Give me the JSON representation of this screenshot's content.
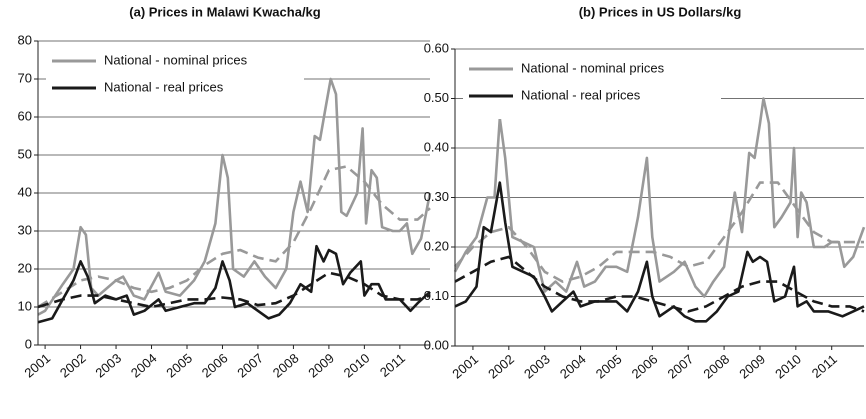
{
  "chart_data": [
    {
      "type": "line",
      "title": "(a)  Prices in Malawi Kwacha/kg",
      "legend": "upper left",
      "grid": true,
      "xlim": [
        2000.8,
        2011.85
      ],
      "xticks": [
        2001,
        2002,
        2003,
        2004,
        2005,
        2006,
        2007,
        2008,
        2009,
        2010,
        2011
      ],
      "ylim": [
        0,
        80
      ],
      "yticks": [
        0,
        10,
        20,
        30,
        40,
        50,
        60,
        70,
        80
      ],
      "series": [
        {
          "name": "National - nominal prices",
          "color": "#999999",
          "dashed": false,
          "x": [
            2000.8,
            2001.0,
            2001.5,
            2001.8,
            2002.0,
            2002.15,
            2002.3,
            2002.5,
            2003.0,
            2003.2,
            2003.5,
            2003.8,
            2004.2,
            2004.4,
            2004.8,
            2005.2,
            2005.5,
            2005.8,
            2006.0,
            2006.15,
            2006.3,
            2006.6,
            2006.9,
            2007.2,
            2007.5,
            2007.8,
            2008.0,
            2008.2,
            2008.4,
            2008.6,
            2008.75,
            2008.9,
            2009.05,
            2009.2,
            2009.35,
            2009.5,
            2009.8,
            2009.95,
            2010.05,
            2010.2,
            2010.35,
            2010.5,
            2010.8,
            2011.0,
            2011.2,
            2011.35,
            2011.6,
            2011.85
          ],
          "values": [
            8,
            9,
            16,
            20,
            31,
            29,
            15,
            13,
            17,
            18,
            13,
            12,
            19,
            14,
            13,
            17,
            22,
            32,
            50,
            44,
            20,
            18,
            22,
            18,
            15,
            20,
            35,
            43,
            35,
            55,
            54,
            62,
            70,
            66,
            35,
            34,
            40,
            57,
            32,
            46,
            44,
            31,
            30,
            30,
            32,
            24,
            28,
            40
          ]
        },
        {
          "color": "#999999",
          "dashed": true,
          "x": [
            2000.8,
            2001.5,
            2002.0,
            2002.5,
            2003.0,
            2003.5,
            2004.0,
            2004.5,
            2005.0,
            2005.5,
            2006.0,
            2006.5,
            2007.0,
            2007.5,
            2008.0,
            2008.5,
            2009.0,
            2009.5,
            2010.0,
            2010.5,
            2011.0,
            2011.5,
            2011.85
          ],
          "values": [
            10,
            14,
            17,
            18,
            17,
            15,
            14,
            15,
            17,
            21,
            24,
            25,
            23,
            22,
            27,
            36,
            46,
            47,
            43,
            37,
            33,
            33,
            36
          ]
        },
        {
          "name": "National - real prices",
          "color": "#1a1a1a",
          "dashed": false,
          "x": [
            2000.8,
            2001.2,
            2001.5,
            2001.8,
            2002.0,
            2002.2,
            2002.4,
            2002.7,
            2003.0,
            2003.3,
            2003.5,
            2003.8,
            2004.2,
            2004.4,
            2004.8,
            2005.2,
            2005.5,
            2005.8,
            2006.0,
            2006.2,
            2006.35,
            2006.7,
            2007.0,
            2007.3,
            2007.6,
            2007.9,
            2008.2,
            2008.5,
            2008.65,
            2008.85,
            2009.0,
            2009.2,
            2009.4,
            2009.6,
            2009.9,
            2010.0,
            2010.2,
            2010.4,
            2010.6,
            2011.0,
            2011.3,
            2011.5,
            2011.85
          ],
          "values": [
            6,
            7,
            12,
            17,
            22,
            18,
            11,
            13,
            12,
            13,
            8,
            9,
            12,
            9,
            10,
            11,
            11,
            15,
            22,
            17,
            10,
            11,
            9,
            7,
            8,
            11,
            16,
            14,
            26,
            22,
            25,
            24,
            16,
            19,
            22,
            13,
            16,
            16,
            12,
            12,
            9,
            11,
            14
          ]
        },
        {
          "color": "#1a1a1a",
          "dashed": true,
          "x": [
            2000.8,
            2001.5,
            2002.0,
            2002.5,
            2003.0,
            2003.5,
            2004.0,
            2004.5,
            2005.0,
            2005.5,
            2006.0,
            2006.5,
            2007.0,
            2007.5,
            2008.0,
            2008.5,
            2009.0,
            2009.5,
            2010.0,
            2010.5,
            2011.0,
            2011.5,
            2011.85
          ],
          "values": [
            10,
            12,
            13,
            13,
            12,
            11,
            10,
            11,
            12,
            12,
            12.5,
            12,
            10.5,
            11,
            13,
            16,
            19,
            18,
            16,
            13,
            12,
            12,
            13
          ]
        }
      ]
    },
    {
      "type": "line",
      "title": "(b)  Prices in US Dollars/kg",
      "legend": "upper left",
      "grid": true,
      "xlim": [
        2000.5,
        2011.9
      ],
      "xticks": [
        2001,
        2002,
        2003,
        2004,
        2005,
        2006,
        2007,
        2008,
        2009,
        2010,
        2011
      ],
      "ylim": [
        0,
        0.6
      ],
      "yticks": [
        {
          "value": 0,
          "label": "0.00"
        },
        {
          "value": 0.1,
          "label": "0.10"
        },
        {
          "value": 0.2,
          "label": "0.20"
        },
        {
          "value": 0.3,
          "label": "0.30"
        },
        {
          "value": 0.4,
          "label": "0.40"
        },
        {
          "value": 0.5,
          "label": "0.50"
        },
        {
          "value": 0.6,
          "label": "0.60"
        }
      ],
      "series": [
        {
          "name": "National - nominal prices",
          "color": "#999999",
          "dashed": false,
          "x": [
            2000.5,
            2000.8,
            2001.1,
            2001.4,
            2001.6,
            2001.75,
            2001.9,
            2002.1,
            2002.4,
            2002.7,
            2003.0,
            2003.3,
            2003.6,
            2003.9,
            2004.1,
            2004.4,
            2004.7,
            2005.0,
            2005.3,
            2005.6,
            2005.85,
            2006.0,
            2006.2,
            2006.6,
            2006.9,
            2007.2,
            2007.45,
            2007.7,
            2008.0,
            2008.3,
            2008.5,
            2008.7,
            2008.85,
            2009.0,
            2009.1,
            2009.25,
            2009.4,
            2009.6,
            2009.85,
            2009.95,
            2010.05,
            2010.15,
            2010.3,
            2010.5,
            2010.8,
            2011.0,
            2011.2,
            2011.35,
            2011.6,
            2011.9
          ],
          "values": [
            0.15,
            0.19,
            0.22,
            0.3,
            0.3,
            0.46,
            0.38,
            0.22,
            0.21,
            0.2,
            0.11,
            0.13,
            0.11,
            0.17,
            0.12,
            0.13,
            0.16,
            0.16,
            0.15,
            0.26,
            0.38,
            0.22,
            0.13,
            0.15,
            0.17,
            0.12,
            0.1,
            0.13,
            0.16,
            0.31,
            0.23,
            0.39,
            0.38,
            0.45,
            0.5,
            0.45,
            0.24,
            0.26,
            0.29,
            0.4,
            0.22,
            0.31,
            0.29,
            0.2,
            0.2,
            0.21,
            0.21,
            0.16,
            0.18,
            0.24
          ]
        },
        {
          "color": "#999999",
          "dashed": true,
          "x": [
            2000.5,
            2001.0,
            2001.5,
            2002.0,
            2002.5,
            2003.0,
            2003.5,
            2004.0,
            2004.5,
            2005.0,
            2005.5,
            2006.0,
            2006.5,
            2007.0,
            2007.5,
            2008.0,
            2008.5,
            2009.0,
            2009.5,
            2010.0,
            2010.5,
            2011.0,
            2011.5,
            2011.9
          ],
          "values": [
            0.16,
            0.2,
            0.23,
            0.24,
            0.2,
            0.15,
            0.13,
            0.14,
            0.16,
            0.19,
            0.19,
            0.19,
            0.18,
            0.16,
            0.17,
            0.22,
            0.27,
            0.33,
            0.33,
            0.28,
            0.23,
            0.21,
            0.21,
            0.21
          ]
        },
        {
          "name": "National - real prices",
          "color": "#1a1a1a",
          "dashed": false,
          "x": [
            2000.5,
            2000.8,
            2001.1,
            2001.3,
            2001.5,
            2001.75,
            2001.9,
            2002.1,
            2002.4,
            2002.7,
            2003.0,
            2003.2,
            2003.5,
            2003.8,
            2004.0,
            2004.4,
            2004.7,
            2005.0,
            2005.3,
            2005.6,
            2005.85,
            2006.0,
            2006.2,
            2006.6,
            2006.9,
            2007.2,
            2007.5,
            2007.8,
            2008.1,
            2008.4,
            2008.65,
            2008.8,
            2009.0,
            2009.2,
            2009.4,
            2009.7,
            2009.95,
            2010.05,
            2010.3,
            2010.5,
            2010.9,
            2011.3,
            2011.6,
            2011.9
          ],
          "values": [
            0.08,
            0.09,
            0.12,
            0.24,
            0.23,
            0.33,
            0.25,
            0.16,
            0.15,
            0.14,
            0.1,
            0.07,
            0.09,
            0.11,
            0.08,
            0.09,
            0.09,
            0.09,
            0.07,
            0.11,
            0.17,
            0.1,
            0.06,
            0.08,
            0.06,
            0.05,
            0.05,
            0.07,
            0.1,
            0.11,
            0.19,
            0.17,
            0.18,
            0.17,
            0.09,
            0.1,
            0.16,
            0.08,
            0.09,
            0.07,
            0.07,
            0.06,
            0.07,
            0.08
          ]
        },
        {
          "color": "#1a1a1a",
          "dashed": true,
          "x": [
            2000.5,
            2001.0,
            2001.5,
            2002.0,
            2002.5,
            2003.0,
            2003.5,
            2004.0,
            2004.5,
            2005.0,
            2005.5,
            2006.0,
            2006.5,
            2007.0,
            2007.5,
            2008.0,
            2008.5,
            2009.0,
            2009.5,
            2010.0,
            2010.5,
            2011.0,
            2011.5,
            2011.9
          ],
          "values": [
            0.13,
            0.15,
            0.17,
            0.18,
            0.15,
            0.12,
            0.1,
            0.09,
            0.09,
            0.1,
            0.1,
            0.09,
            0.08,
            0.07,
            0.08,
            0.1,
            0.12,
            0.13,
            0.13,
            0.11,
            0.09,
            0.08,
            0.08,
            0.07
          ]
        }
      ]
    }
  ]
}
